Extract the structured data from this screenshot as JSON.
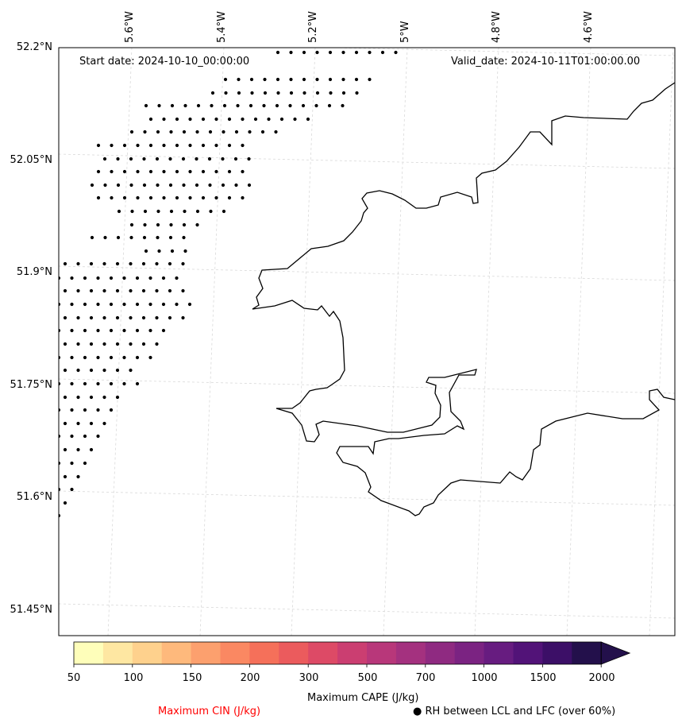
{
  "header": {
    "start_date": "Start date: 2024-10-10_00:00:00",
    "valid_date": "Valid_date: 2024-10-11T01:00:00.00"
  },
  "axes": {
    "lat_labels": [
      "52.2°N",
      "52.05°N",
      "51.9°N",
      "51.75°N",
      "51.6°N",
      "51.45°N"
    ],
    "lon_labels": [
      "5.6°W",
      "5.4°W",
      "5.2°W",
      "5°W",
      "4.8°W",
      "4.6°W"
    ]
  },
  "colorbar": {
    "title": "Maximum CAPE (J/kg)",
    "ticks": [
      "50",
      "100",
      "150",
      "200",
      "300",
      "500",
      "700",
      "1000",
      "1500",
      "2000"
    ],
    "colors": [
      "#fefeba",
      "#fee7a2",
      "#fed18d",
      "#feb97c",
      "#fca06e",
      "#fa8862",
      "#f5705a",
      "#eb5b5d",
      "#dd4a66",
      "#cb3e71",
      "#b8377a",
      "#a4317f",
      "#8f2a81",
      "#7b2382",
      "#671c80",
      "#521378",
      "#3c0f67",
      "#23104b"
    ],
    "extend": "max"
  },
  "legend": {
    "cin_label": "Maximum CIN (J/kg)",
    "cin_color": "#ff0000",
    "rh_symbol": "●",
    "rh_label": "RH between LCL and LFC (over 60%)"
  }
}
